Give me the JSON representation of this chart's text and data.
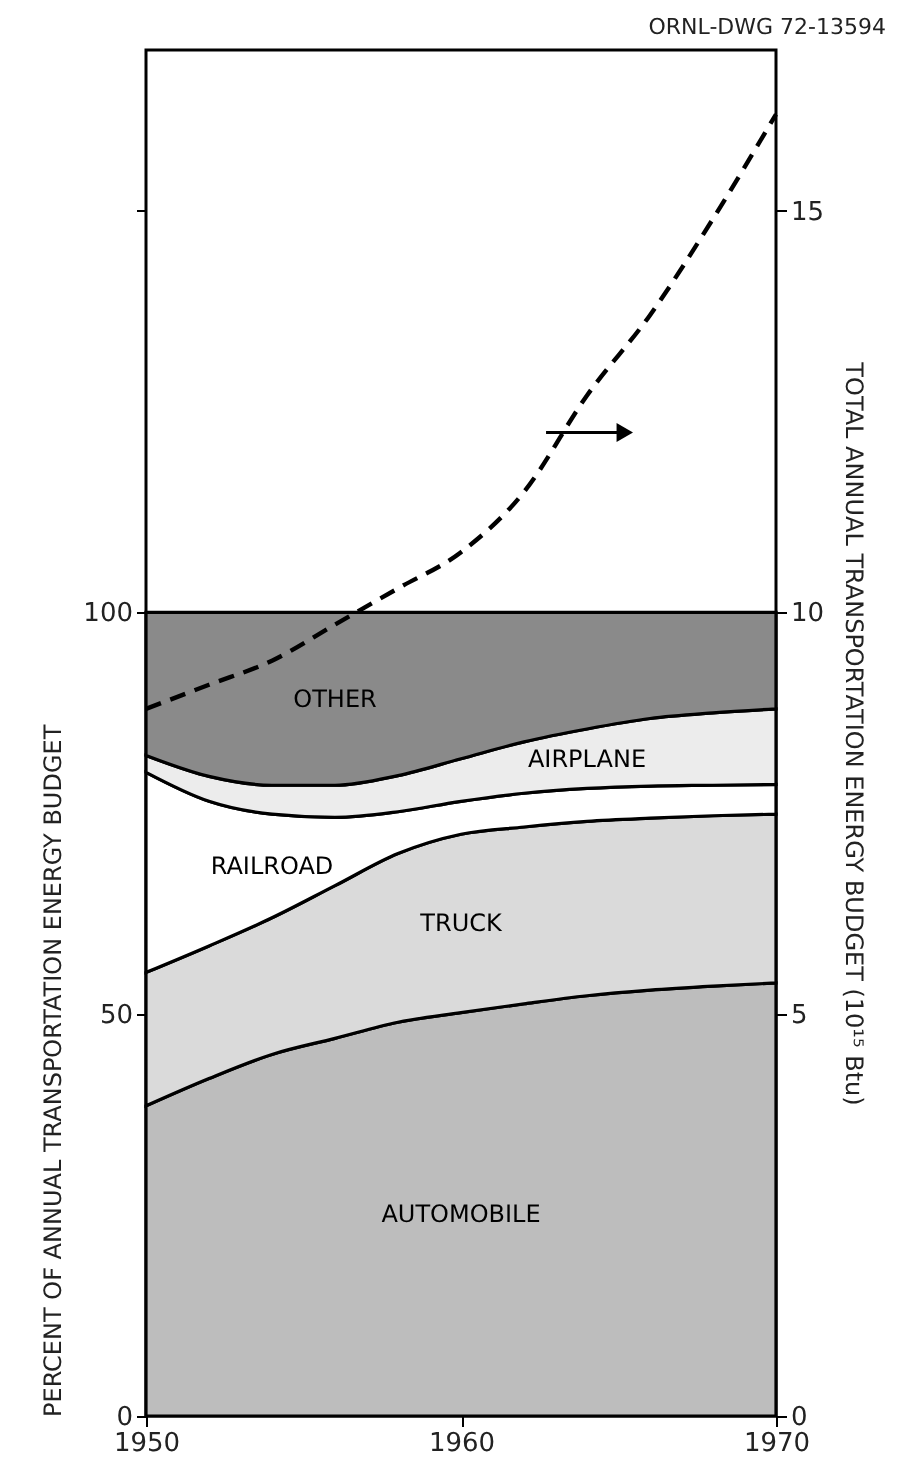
{
  "chart_data": {
    "type": "area",
    "stacked": true,
    "ylabel": "PERCENT OF ANNUAL TRANSPORTATION ENERGY BUDGET",
    "y2label": "TOTAL ANNUAL TRANSPORTATION ENERGY BUDGET (10¹⁵ Btu)",
    "annotations": [
      "ORNL-DWG 72-13594"
    ],
    "x": [
      1950,
      1952,
      1954,
      1956,
      1958,
      1960,
      1962,
      1964,
      1966,
      1968,
      1970
    ],
    "xlim": [
      1950,
      1970
    ],
    "xticks": [
      1950,
      1960,
      1970
    ],
    "ylim": [
      0,
      170
    ],
    "yticks": [
      0,
      50,
      100,
      {
        "value": 150,
        "label": null
      }
    ],
    "y2lim": [
      0,
      17
    ],
    "y2ticks": [
      0,
      5,
      10,
      15
    ],
    "grid": false,
    "legend": false,
    "series": [
      {
        "name": "AUTOMOBILE",
        "color": "#bdbdbd",
        "values": [
          38.6,
          42,
          45,
          47,
          49,
          50.2,
          51.3,
          52.3,
          53,
          53.5,
          53.9
        ]
      },
      {
        "name": "TRUCK",
        "color": "#dadada",
        "values": [
          16.6,
          16.5,
          17,
          19,
          21,
          22.2,
          22,
          21.7,
          21.4,
          21.2,
          21
        ]
      },
      {
        "name": "RAILROAD",
        "color": "#ffffff",
        "values": [
          24.9,
          18,
          12.9,
          8.5,
          5.2,
          4.1,
          4.2,
          4.1,
          4,
          3.8,
          3.7
        ]
      },
      {
        "name": "AIRPLANE",
        "color": "#ececec",
        "values": [
          2.1,
          3.1,
          3.6,
          4,
          4.5,
          5.3,
          6.4,
          7.4,
          8.4,
          9,
          9.4
        ]
      },
      {
        "name": "OTHER",
        "color": "#8a8a8a",
        "values": [
          17.8,
          20.4,
          21.5,
          21.5,
          20.3,
          18.2,
          16.1,
          14.5,
          13.2,
          12.5,
          12
        ]
      },
      {
        "type": "line",
        "axis": "y2",
        "color": "#000000",
        "line_style": "dashed",
        "marker": "none",
        "values": [
          8.8,
          9.1,
          9.4,
          9.85,
          10.3,
          10.75,
          11.5,
          12.7,
          13.7,
          14.9,
          16.2
        ]
      }
    ]
  }
}
